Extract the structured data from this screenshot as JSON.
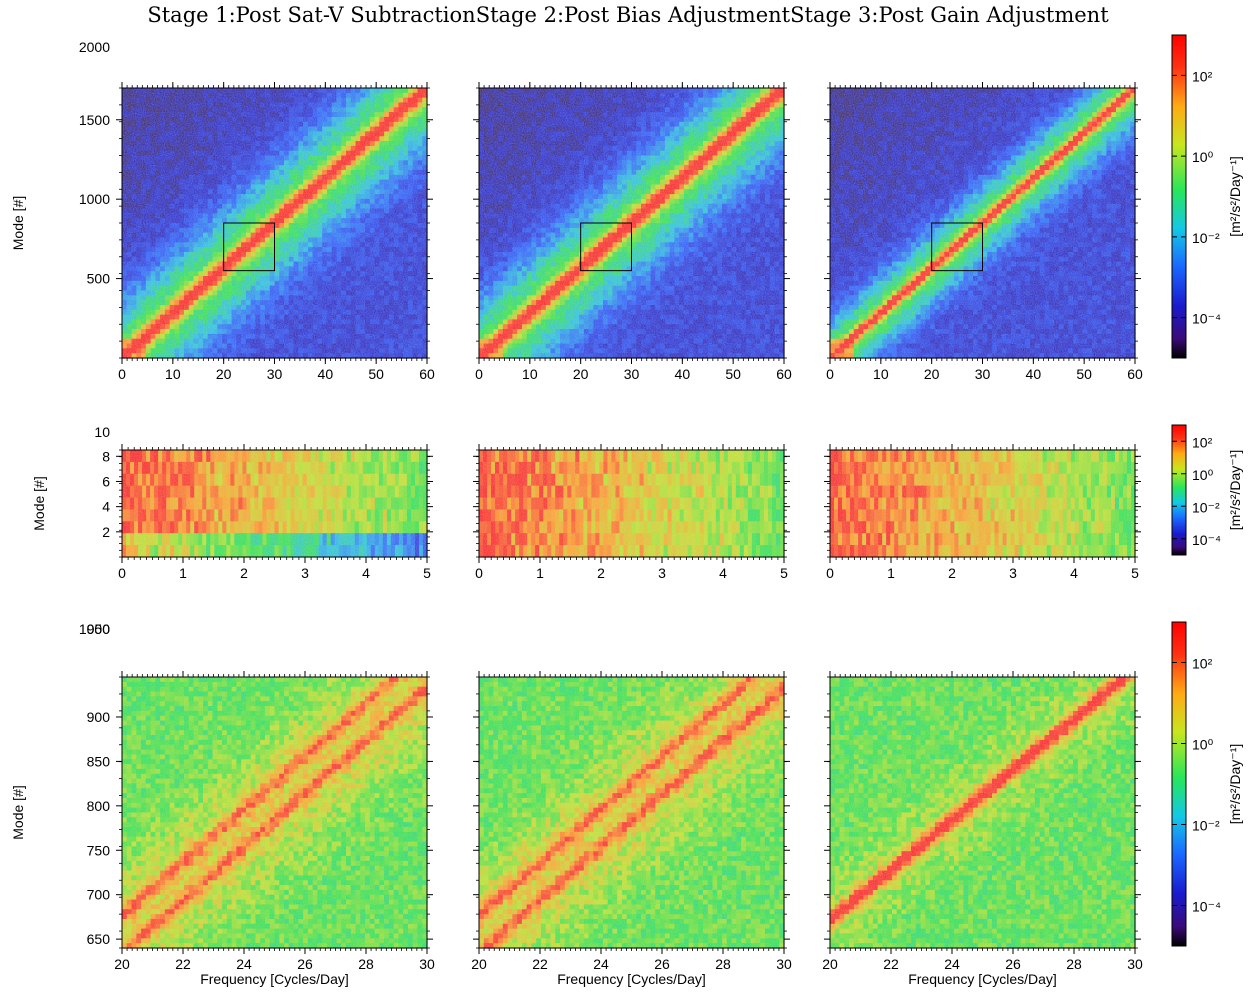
{
  "title": "Stage 1:Post Sat-V SubtractionStage 2:Post Bias AdjustmentStage 3:Post Gain Adjustment",
  "colors": {
    "colormap": [
      "#000000",
      "#3a0b78",
      "#1a1acc",
      "#1a66ff",
      "#14c8e6",
      "#28e65a",
      "#c8e61e",
      "#ffaa14",
      "#ff3214",
      "#ff0000"
    ],
    "frame": "#000000",
    "zoom_box": "#000000"
  },
  "chart_data": [
    {
      "type": "heatmap",
      "panels": [
        "Stage 1:Post Sat-V Subtraction",
        "Stage 2:Post Bias Adjustment",
        "Stage 3:Post Gain Adjustment"
      ],
      "xlabel": "",
      "ylabel": "Mode [#]",
      "xlim": [
        0,
        60
      ],
      "ylim": [
        0,
        1700
      ],
      "xticks": [
        "0",
        "10",
        "20",
        "30",
        "40",
        "50",
        "60"
      ],
      "yticks": [
        "500",
        "1000",
        "1500",
        "2000"
      ],
      "zoom_box": {
        "x": [
          20,
          30
        ],
        "y": [
          550,
          850
        ]
      },
      "colorbar": {
        "label": "[m²/s²/Day⁻¹]",
        "scale": "log",
        "range": [
          1e-05,
          1000
        ],
        "ticks": [
          "10²",
          "10⁰",
          "10⁻²",
          "10⁻⁴"
        ]
      }
    },
    {
      "type": "heatmap",
      "panels": [
        "Stage 1:Post Sat-V Subtraction",
        "Stage 2:Post Bias Adjustment",
        "Stage 3:Post Gain Adjustment"
      ],
      "xlabel": "",
      "ylabel": "Mode [#]",
      "xlim": [
        0,
        5
      ],
      "ylim": [
        0,
        8.5
      ],
      "xticks": [
        "0",
        "1",
        "2",
        "3",
        "4",
        "5"
      ],
      "yticks": [
        "2",
        "4",
        "6",
        "8",
        "10"
      ],
      "colorbar": {
        "label": "[m²/s²/Day⁻¹]",
        "scale": "log",
        "range": [
          1e-05,
          1000
        ],
        "ticks": [
          "10²",
          "10⁰",
          "10⁻²",
          "10⁻⁴"
        ]
      }
    },
    {
      "type": "heatmap",
      "panels": [
        "Stage 1:Post Sat-V Subtraction",
        "Stage 2:Post Bias Adjustment",
        "Stage 3:Post Gain Adjustment"
      ],
      "xlabel": "Frequency [Cycles/Day]",
      "ylabel": "Mode [#]",
      "xlim": [
        20,
        30
      ],
      "ylim": [
        640,
        945
      ],
      "xticks": [
        "20",
        "22",
        "24",
        "26",
        "28",
        "30"
      ],
      "yticks": [
        "650",
        "700",
        "750",
        "800",
        "850",
        "900",
        "950",
        "1000"
      ],
      "colorbar": {
        "label": "[m²/s²/Day⁻¹]",
        "scale": "log",
        "range": [
          1e-05,
          1000
        ],
        "ticks": [
          "10²",
          "10⁰",
          "10⁻²",
          "10⁻⁴"
        ]
      }
    }
  ]
}
